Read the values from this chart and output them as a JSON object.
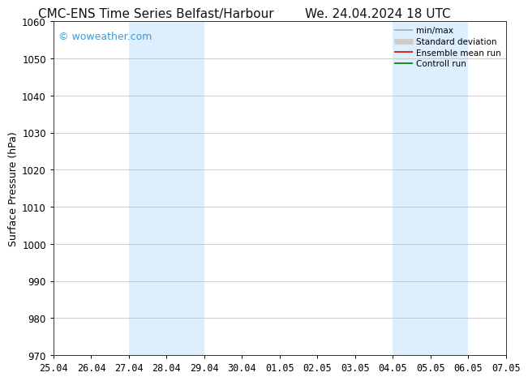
{
  "title_left": "CMC-ENS Time Series Belfast/Harbour",
  "title_right": "We. 24.04.2024 18 UTC",
  "ylabel": "Surface Pressure (hPa)",
  "watermark": "© woweather.com",
  "watermark_color": "#4499cc",
  "ylim": [
    970,
    1060
  ],
  "yticks": [
    970,
    980,
    990,
    1000,
    1010,
    1020,
    1030,
    1040,
    1050,
    1060
  ],
  "xtick_labels": [
    "25.04",
    "26.04",
    "27.04",
    "28.04",
    "29.04",
    "30.04",
    "01.05",
    "02.05",
    "03.05",
    "04.05",
    "05.05",
    "06.05",
    "07.05"
  ],
  "xtick_positions": [
    0,
    1,
    2,
    3,
    4,
    5,
    6,
    7,
    8,
    9,
    10,
    11,
    12
  ],
  "shaded_bands": [
    {
      "x_start": 2,
      "x_end": 4
    },
    {
      "x_start": 9,
      "x_end": 11
    }
  ],
  "shaded_color": "#ddeeff",
  "background_color": "#ffffff",
  "grid_color": "#bbbbbb",
  "legend_items": [
    {
      "label": "min/max",
      "color": "#aaaaaa",
      "lw": 1.2
    },
    {
      "label": "Standard deviation",
      "color": "#cccccc",
      "lw": 5
    },
    {
      "label": "Ensemble mean run",
      "color": "#dd0000",
      "lw": 1.2
    },
    {
      "label": "Controll run",
      "color": "#007700",
      "lw": 1.2
    }
  ],
  "title_fontsize": 11,
  "tick_fontsize": 8.5,
  "ylabel_fontsize": 9,
  "watermark_fontsize": 9,
  "legend_fontsize": 7.5
}
